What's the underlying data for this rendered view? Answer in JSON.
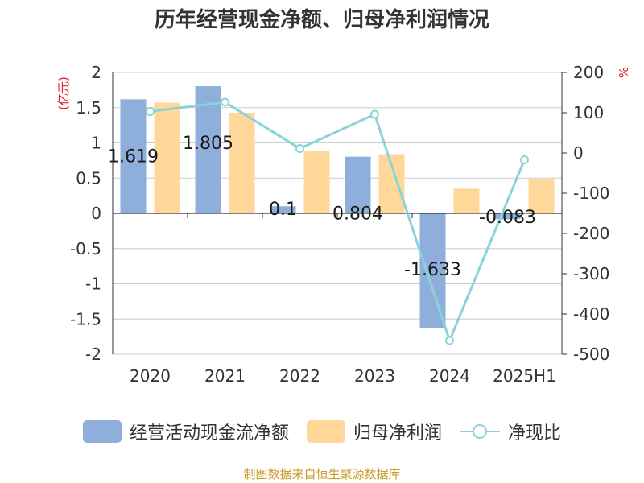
{
  "colors": {
    "operating_cash_flow": "#8eaedb",
    "net_profit": "#ffd799",
    "ratio": "#8ad3d8",
    "left_unit": "#e0201e",
    "right_unit": "#e0201e",
    "source": "#c99a2a"
  },
  "chart_data": {
    "type": "bar",
    "title": "历年经营现金净额、归母净利润情况",
    "categories": [
      "2020",
      "2021",
      "2022",
      "2023",
      "2024",
      "2025H1"
    ],
    "series": [
      {
        "name": "经营活动现金流净额",
        "type": "bar",
        "axis": "left",
        "values": [
          1.619,
          1.805,
          0.1,
          0.804,
          -1.633,
          -0.083
        ],
        "labels": [
          "1.619",
          "1.805",
          "0.1",
          "0.804",
          "-1.633",
          "-0.083"
        ]
      },
      {
        "name": "归母净利润",
        "type": "bar",
        "axis": "left",
        "values": [
          1.57,
          1.43,
          0.88,
          0.84,
          0.35,
          0.49
        ]
      },
      {
        "name": "净现比",
        "type": "line",
        "axis": "right",
        "values": [
          103,
          126,
          11,
          96,
          -466,
          -17
        ]
      }
    ],
    "y_left": {
      "unit": "(亿元)",
      "min": -2,
      "max": 2,
      "ticks": [
        2,
        1.5,
        1,
        0.5,
        0,
        -0.5,
        -1,
        -1.5,
        -2
      ],
      "tick_labels": [
        "2",
        "1.5",
        "1",
        "0.5",
        "0",
        "-0.5",
        "-1",
        "-1.5",
        "-2"
      ]
    },
    "y_right": {
      "unit": "%",
      "min": -500,
      "max": 200,
      "ticks": [
        200,
        100,
        0,
        -100,
        -200,
        -300,
        -400,
        -500
      ],
      "tick_labels": [
        "200",
        "100",
        "0",
        "-100",
        "-200",
        "-300",
        "-400",
        "-500"
      ]
    },
    "grid": true,
    "legend_position": "bottom"
  },
  "source": "制图数据来自恒生聚源数据库"
}
